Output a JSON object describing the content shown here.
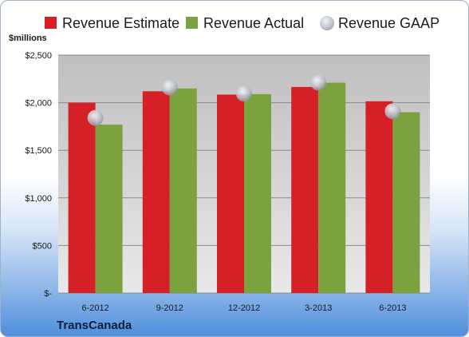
{
  "chart_data": {
    "type": "bar",
    "categories": [
      "6-2012",
      "9-2012",
      "12-2012",
      "3-2013",
      "6-2013"
    ],
    "series": [
      {
        "name": "Revenue Estimate",
        "values": [
          2000,
          2120,
          2085,
          2165,
          2015
        ],
        "color": "#d62027"
      },
      {
        "name": "Revenue Actual",
        "values": [
          1770,
          2150,
          2090,
          2210,
          1900
        ],
        "color": "#7ba23f"
      },
      {
        "name": "Revenue GAAP",
        "values": [
          1840,
          2160,
          2095,
          2210,
          1910
        ],
        "color": "#c9ccd4",
        "style": "marker"
      }
    ],
    "ylabel": "$millions",
    "ylim": [
      0,
      2500
    ],
    "yticks": [
      0,
      500,
      1000,
      1500,
      2000,
      2500
    ],
    "ytick_labels": [
      "$-",
      "$500",
      "$1,000",
      "$1,500",
      "$2,000",
      "$2,500"
    ],
    "grid": true,
    "legend_placement": "top"
  },
  "company": "TransCanada"
}
